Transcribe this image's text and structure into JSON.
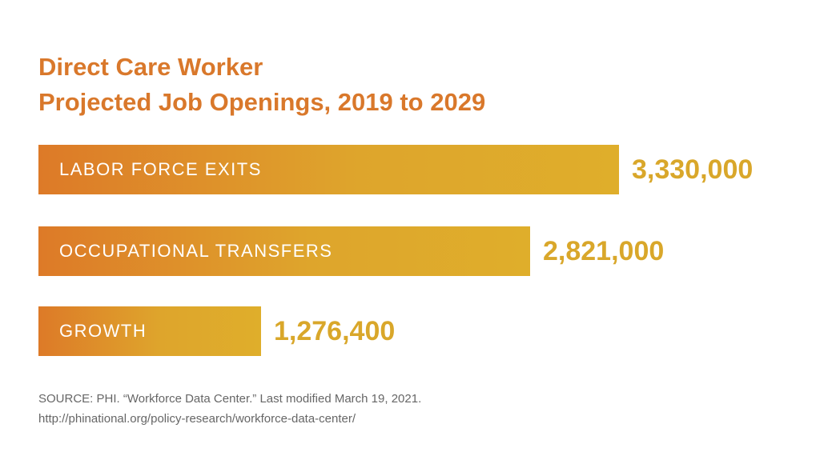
{
  "chart_data": {
    "type": "bar",
    "orientation": "horizontal",
    "title": "Direct Care Worker",
    "subtitle": "Projected Job Openings, 2019 to 2029",
    "categories": [
      "LABOR FORCE EXITS",
      "OCCUPATIONAL TRANSFERS",
      "GROWTH"
    ],
    "values": [
      3330000,
      2821000,
      1276400
    ],
    "value_labels": [
      "3,330,000",
      "2,821,000",
      "1,276,400"
    ],
    "xlim": [
      0,
      3330000
    ],
    "grid": false,
    "colors": {
      "bar_start": "#dd7a28",
      "bar_end": "#dfae2b",
      "value_text": "#d9a72a",
      "title_text": "#d9782b"
    }
  },
  "source": {
    "line1": "SOURCE: PHI. “Workforce Data Center.” Last modified March 19, 2021.",
    "line2": "http://phinational.org/policy-research/workforce-data-center/"
  }
}
